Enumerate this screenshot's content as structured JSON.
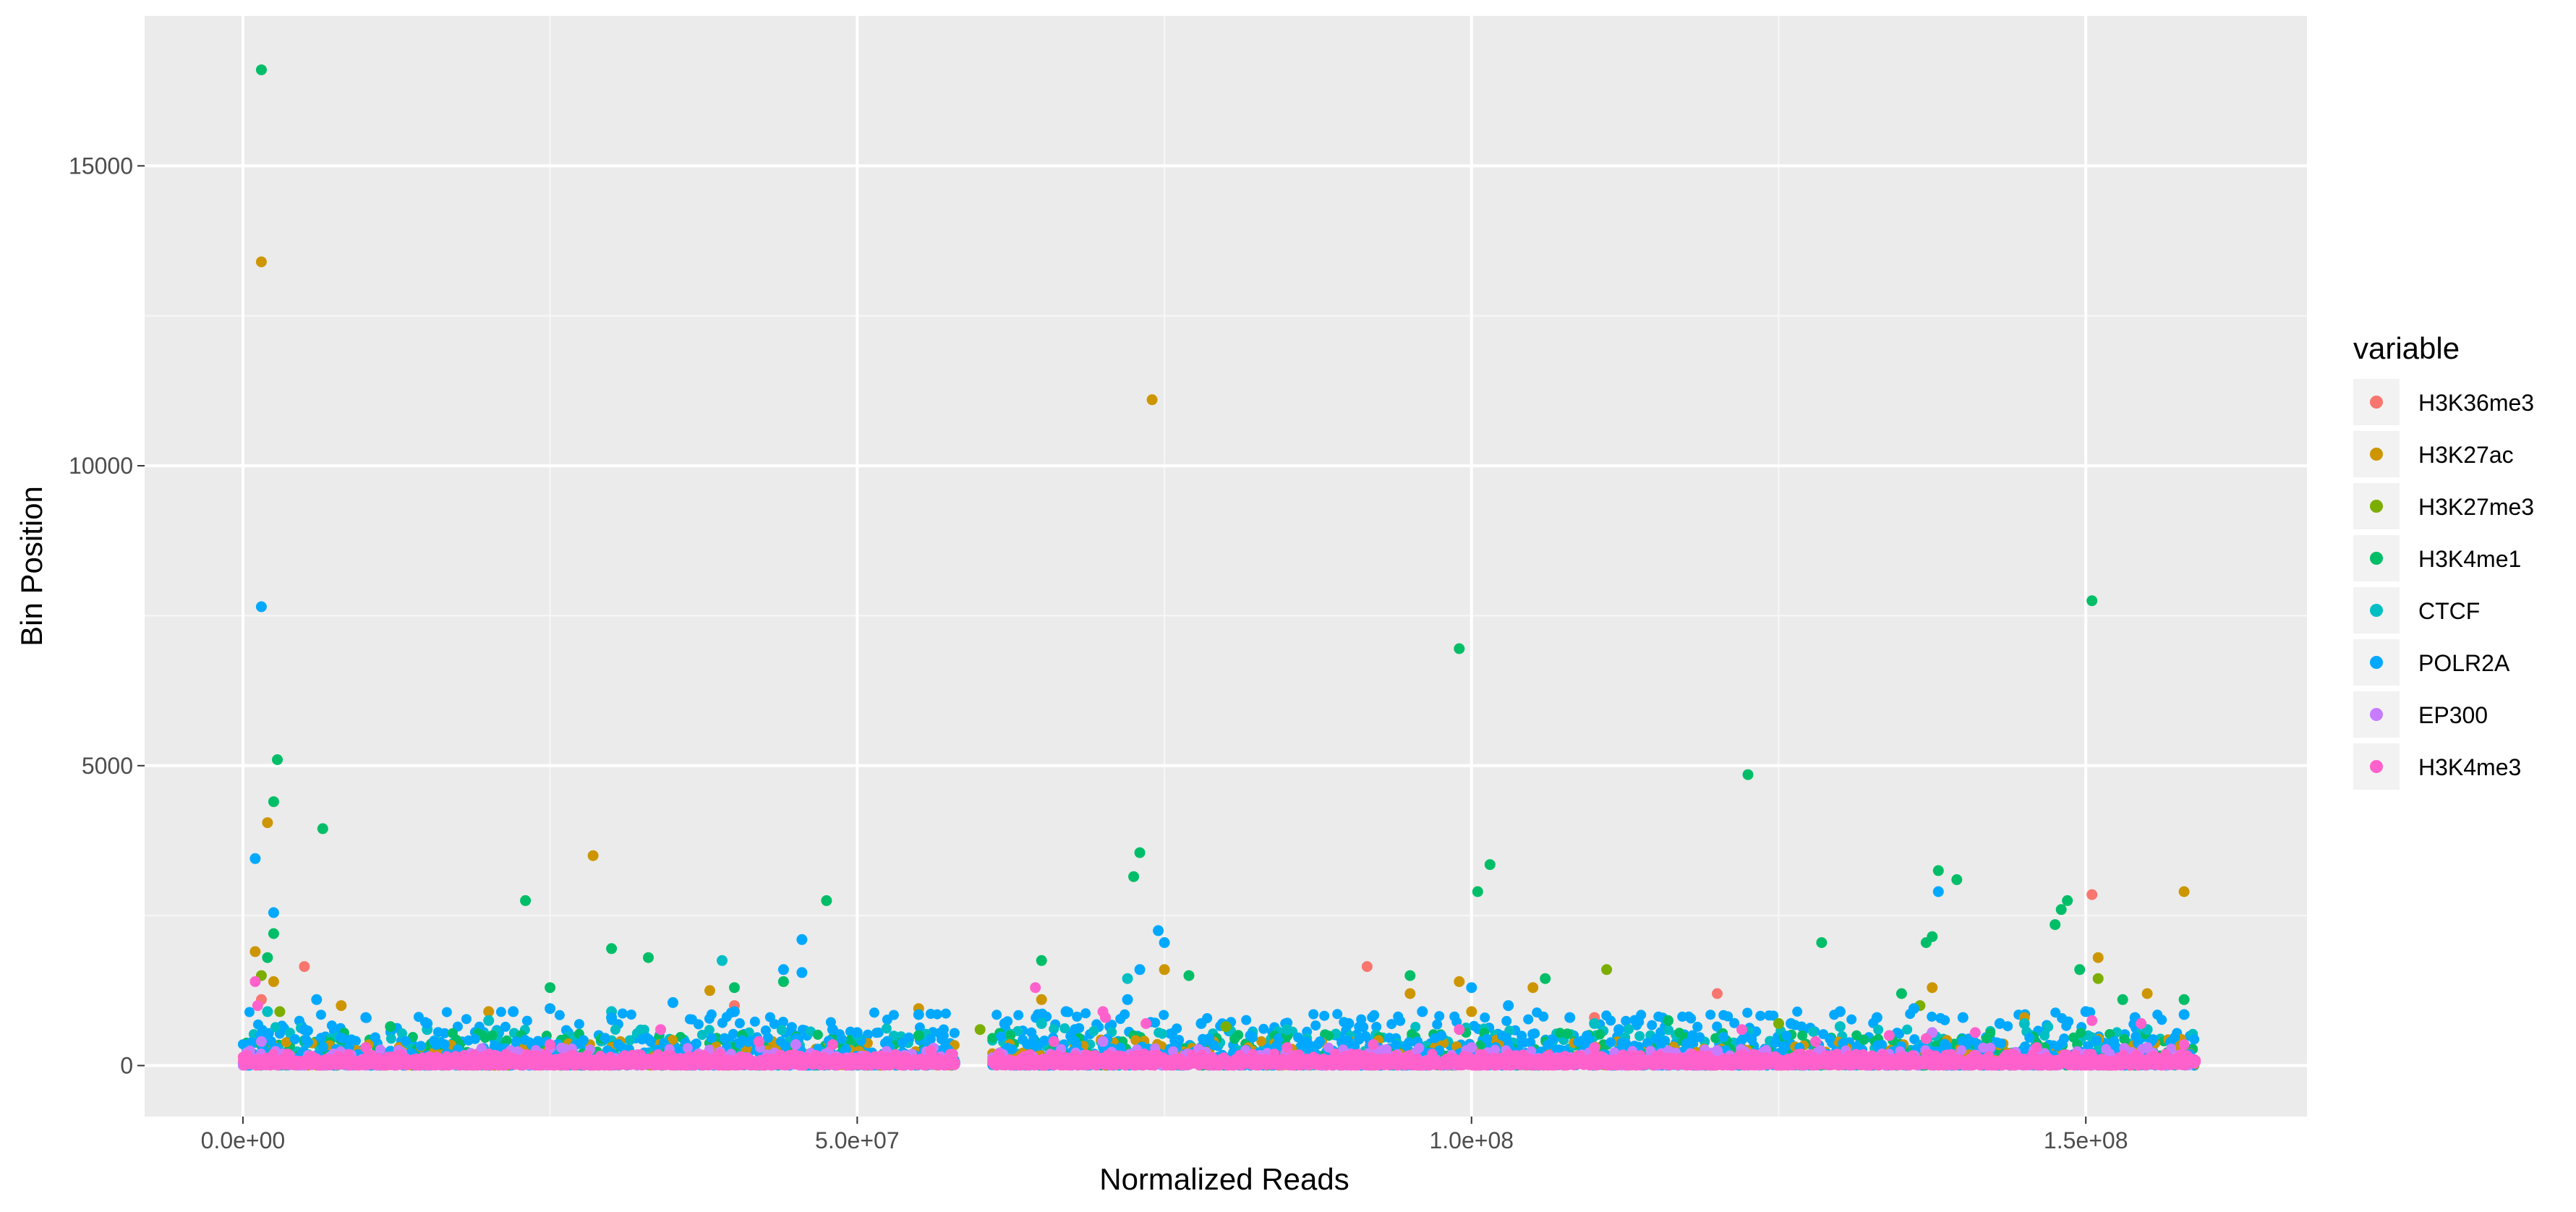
{
  "chart_data": {
    "type": "scatter",
    "title": "",
    "xlabel": "Normalized Reads",
    "ylabel": "Bin Position",
    "xlim": [
      -8000000,
      168000000
    ],
    "ylim": [
      -850,
      17500
    ],
    "x_ticks": [
      {
        "value": 0,
        "label": "0.0e+00"
      },
      {
        "value": 50000000,
        "label": "5.0e+07"
      },
      {
        "value": 100000000,
        "label": "1.0e+08"
      },
      {
        "value": 150000000,
        "label": "1.5e+08"
      }
    ],
    "y_ticks": [
      {
        "value": 0,
        "label": "0"
      },
      {
        "value": 5000,
        "label": "5000"
      },
      {
        "value": 10000,
        "label": "10000"
      },
      {
        "value": 15000,
        "label": "15000"
      }
    ],
    "grid": true,
    "legend": {
      "title": "variable",
      "position": "right",
      "entries": [
        "H3K36me3",
        "H3K27ac",
        "H3K27me3",
        "H3K4me1",
        "CTCF",
        "POLR2A",
        "EP300",
        "H3K4me3"
      ]
    },
    "series": [
      {
        "name": "H3K36me3",
        "color": "#F8766D",
        "points": [
          [
            1500000,
            1100
          ],
          [
            5000000,
            1650
          ],
          [
            91500000,
            1650
          ],
          [
            150500000,
            2850
          ],
          [
            130000000,
            900
          ],
          [
            40000000,
            1000
          ],
          [
            120000000,
            1200
          ],
          [
            110000000,
            800
          ]
        ]
      },
      {
        "name": "H3K27ac",
        "color": "#CD9600",
        "points": [
          [
            1500000,
            13400
          ],
          [
            2000000,
            4050
          ],
          [
            1000000,
            1900
          ],
          [
            2500000,
            1400
          ],
          [
            28500000,
            3500
          ],
          [
            74000000,
            11100
          ],
          [
            75000000,
            1600
          ],
          [
            99000000,
            1400
          ],
          [
            151000000,
            1800
          ],
          [
            158000000,
            2900
          ],
          [
            38000000,
            1250
          ],
          [
            55000000,
            950
          ],
          [
            155000000,
            1200
          ],
          [
            100000000,
            900
          ],
          [
            105000000,
            1300
          ],
          [
            95000000,
            1200
          ],
          [
            8000000,
            1000
          ],
          [
            65000000,
            1100
          ],
          [
            137500000,
            1300
          ],
          [
            145000000,
            800
          ],
          [
            20000000,
            900
          ]
        ]
      },
      {
        "name": "H3K27me3",
        "color": "#7CAE00",
        "points": [
          [
            111000000,
            1600
          ],
          [
            151000000,
            1450
          ],
          [
            136500000,
            1000
          ],
          [
            1500000,
            1500
          ],
          [
            80000000,
            650
          ],
          [
            30000000,
            800
          ],
          [
            60000000,
            600
          ],
          [
            125000000,
            700
          ],
          [
            3000000,
            900
          ]
        ]
      },
      {
        "name": "H3K4me1",
        "color": "#00BE67",
        "points": [
          [
            1500000,
            16600
          ],
          [
            2500000,
            4400
          ],
          [
            2800000,
            5100
          ],
          [
            6500000,
            3950
          ],
          [
            2500000,
            2200
          ],
          [
            2000000,
            1800
          ],
          [
            23000000,
            2750
          ],
          [
            30000000,
            1950
          ],
          [
            33000000,
            1800
          ],
          [
            47500000,
            2750
          ],
          [
            65000000,
            1750
          ],
          [
            72500000,
            3150
          ],
          [
            73000000,
            3550
          ],
          [
            99000000,
            6950
          ],
          [
            100500000,
            2900
          ],
          [
            101500000,
            3350
          ],
          [
            122500000,
            4850
          ],
          [
            128500000,
            2050
          ],
          [
            137000000,
            2050
          ],
          [
            138000000,
            3250
          ],
          [
            139500000,
            3100
          ],
          [
            147500000,
            2350
          ],
          [
            148500000,
            2750
          ],
          [
            150500000,
            7750
          ],
          [
            137500000,
            2150
          ],
          [
            148000000,
            2600
          ],
          [
            25000000,
            1300
          ],
          [
            40000000,
            1300
          ],
          [
            44000000,
            1400
          ],
          [
            77000000,
            1500
          ],
          [
            95000000,
            1500
          ],
          [
            106000000,
            1450
          ],
          [
            116000000,
            750
          ],
          [
            135000000,
            1200
          ],
          [
            149500000,
            1600
          ],
          [
            153000000,
            1100
          ],
          [
            158000000,
            1100
          ],
          [
            12000000,
            650
          ],
          [
            55000000,
            500
          ],
          [
            85000000,
            500
          ]
        ]
      },
      {
        "name": "CTCF",
        "color": "#00BFC4",
        "points": [
          [
            39000000,
            1750
          ],
          [
            72000000,
            1450
          ],
          [
            2000000,
            900
          ],
          [
            15000000,
            600
          ],
          [
            30000000,
            900
          ],
          [
            50000000,
            500
          ],
          [
            85000000,
            600
          ],
          [
            110000000,
            700
          ],
          [
            130000000,
            650
          ],
          [
            145000000,
            700
          ],
          [
            155000000,
            600
          ],
          [
            65000000,
            700
          ],
          [
            20000000,
            750
          ]
        ]
      },
      {
        "name": "POLR2A",
        "color": "#00A9FF",
        "points": [
          [
            1500000,
            7650
          ],
          [
            1000000,
            3450
          ],
          [
            2500000,
            2550
          ],
          [
            45500000,
            2100
          ],
          [
            74500000,
            2250
          ],
          [
            75000000,
            2050
          ],
          [
            138000000,
            2900
          ],
          [
            44000000,
            1600
          ],
          [
            45500000,
            1550
          ],
          [
            73000000,
            1600
          ],
          [
            6000000,
            1100
          ],
          [
            10000000,
            800
          ],
          [
            15000000,
            700
          ],
          [
            22000000,
            900
          ],
          [
            25000000,
            950
          ],
          [
            30000000,
            800
          ],
          [
            35000000,
            1050
          ],
          [
            40000000,
            900
          ],
          [
            50000000,
            550
          ],
          [
            55000000,
            850
          ],
          [
            62000000,
            700
          ],
          [
            67000000,
            900
          ],
          [
            72000000,
            1100
          ],
          [
            78000000,
            700
          ],
          [
            82000000,
            500
          ],
          [
            90000000,
            700
          ],
          [
            96000000,
            900
          ],
          [
            100000000,
            1300
          ],
          [
            103000000,
            1000
          ],
          [
            108000000,
            800
          ],
          [
            112000000,
            600
          ],
          [
            118000000,
            500
          ],
          [
            126000000,
            700
          ],
          [
            130000000,
            900
          ],
          [
            133000000,
            800
          ],
          [
            136000000,
            950
          ],
          [
            140000000,
            800
          ],
          [
            143000000,
            700
          ],
          [
            150000000,
            900
          ],
          [
            154000000,
            800
          ],
          [
            158000000,
            850
          ],
          [
            5000000,
            600
          ],
          [
            48000000,
            600
          ],
          [
            57000000,
            500
          ]
        ]
      },
      {
        "name": "EP300",
        "color": "#C77CFF",
        "points": [
          [
            70000000,
            400
          ],
          [
            137500000,
            550
          ],
          [
            1500000,
            400
          ],
          [
            45000000,
            350
          ],
          [
            100000000,
            300
          ],
          [
            120000000,
            250
          ],
          [
            155000000,
            300
          ]
        ]
      },
      {
        "name": "H3K4me3",
        "color": "#FF61CC",
        "points": [
          [
            1000000,
            1400
          ],
          [
            1200000,
            1000
          ],
          [
            64500000,
            1300
          ],
          [
            70000000,
            900
          ],
          [
            70200000,
            800
          ],
          [
            73500000,
            700
          ],
          [
            99000000,
            600
          ],
          [
            122000000,
            600
          ],
          [
            141000000,
            550
          ],
          [
            150500000,
            750
          ],
          [
            154500000,
            700
          ],
          [
            10000000,
            300
          ],
          [
            25000000,
            350
          ],
          [
            34000000,
            600
          ],
          [
            42000000,
            400
          ],
          [
            48000000,
            350
          ],
          [
            56000000,
            250
          ],
          [
            66000000,
            400
          ],
          [
            85000000,
            300
          ],
          [
            92000000,
            350
          ],
          [
            110000000,
            300
          ],
          [
            128000000,
            400
          ],
          [
            134000000,
            500
          ],
          [
            137000000,
            450
          ],
          [
            146000000,
            300
          ],
          [
            158000000,
            350
          ]
        ]
      }
    ],
    "bands": [
      {
        "from": 0,
        "to": 58000000
      },
      {
        "from": 61000000,
        "to": 159000000
      }
    ]
  }
}
